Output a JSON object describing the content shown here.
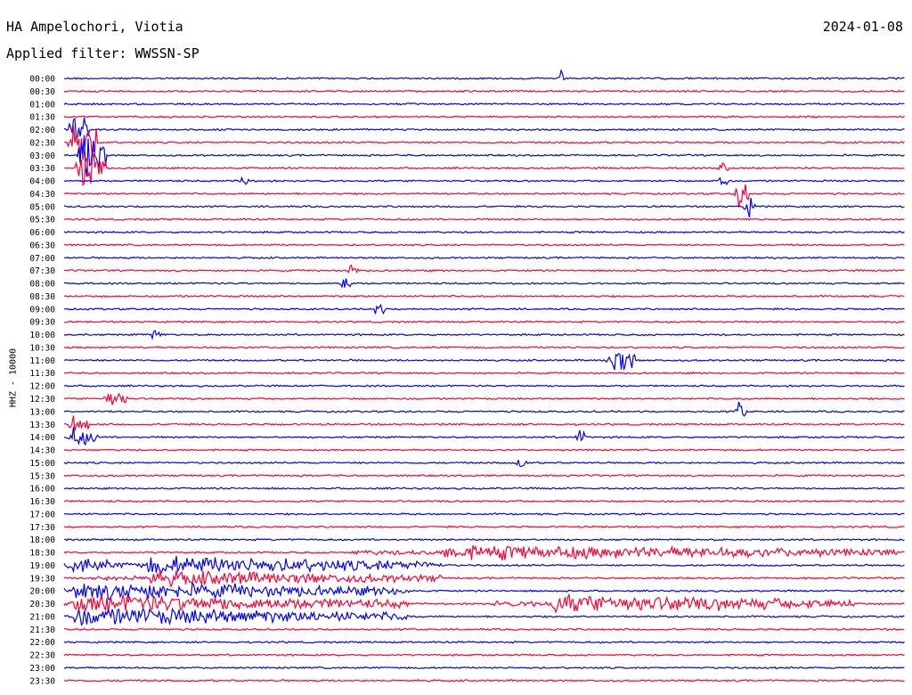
{
  "header": {
    "station": "HA Ampelochori, Viotia",
    "date": "2024-01-08",
    "filter": "Applied filter: WWSSN-SP"
  },
  "chart_data": {
    "type": "line",
    "title": "HA Ampelochori, Viotia",
    "ylabel": "HHZ - 10000",
    "colors": [
      "#0000ff",
      "#ff0033"
    ],
    "row_labels": [
      "00:00",
      "00:30",
      "01:00",
      "01:30",
      "02:00",
      "02:30",
      "03:00",
      "03:30",
      "04:00",
      "04:30",
      "05:00",
      "05:30",
      "06:00",
      "06:30",
      "07:00",
      "07:30",
      "08:00",
      "08:30",
      "09:00",
      "09:30",
      "10:00",
      "10:30",
      "11:00",
      "11:30",
      "12:00",
      "12:30",
      "13:00",
      "13:30",
      "14:00",
      "14:30",
      "15:00",
      "15:30",
      "16:00",
      "16:30",
      "17:00",
      "17:30",
      "18:00",
      "18:30",
      "19:00",
      "19:30",
      "20:00",
      "20:30",
      "21:00",
      "21:30",
      "22:00",
      "22:30",
      "23:00",
      "23:30"
    ],
    "events": [
      {
        "row": 0,
        "pos": 0.59,
        "amp": 12,
        "width": 0.006
      },
      {
        "row": 4,
        "pos": 0.01,
        "amp": 30,
        "width": 0.02
      },
      {
        "row": 5,
        "pos": 0.01,
        "amp": 40,
        "width": 0.03
      },
      {
        "row": 6,
        "pos": 0.02,
        "amp": 45,
        "width": 0.03
      },
      {
        "row": 7,
        "pos": 0.02,
        "amp": 35,
        "width": 0.03
      },
      {
        "row": 7,
        "pos": 0.78,
        "amp": 12,
        "width": 0.01
      },
      {
        "row": 8,
        "pos": 0.21,
        "amp": 12,
        "width": 0.01
      },
      {
        "row": 8,
        "pos": 0.78,
        "amp": 15,
        "width": 0.01
      },
      {
        "row": 9,
        "pos": 0.8,
        "amp": 25,
        "width": 0.015
      },
      {
        "row": 10,
        "pos": 0.81,
        "amp": 18,
        "width": 0.012
      },
      {
        "row": 15,
        "pos": 0.34,
        "amp": 10,
        "width": 0.01
      },
      {
        "row": 16,
        "pos": 0.33,
        "amp": 14,
        "width": 0.012
      },
      {
        "row": 18,
        "pos": 0.37,
        "amp": 12,
        "width": 0.012
      },
      {
        "row": 20,
        "pos": 0.1,
        "amp": 10,
        "width": 0.015
      },
      {
        "row": 22,
        "pos": 0.65,
        "amp": 22,
        "width": 0.03
      },
      {
        "row": 25,
        "pos": 0.05,
        "amp": 14,
        "width": 0.025
      },
      {
        "row": 26,
        "pos": 0.8,
        "amp": 15,
        "width": 0.012
      },
      {
        "row": 27,
        "pos": 0.01,
        "amp": 15,
        "width": 0.02
      },
      {
        "row": 28,
        "pos": 0.01,
        "amp": 14,
        "width": 0.03
      },
      {
        "row": 28,
        "pos": 0.61,
        "amp": 12,
        "width": 0.012
      },
      {
        "row": 30,
        "pos": 0.54,
        "amp": 10,
        "width": 0.012
      },
      {
        "row": 38,
        "pos": 0.01,
        "amp": 12,
        "width": 0.05
      },
      {
        "row": 38,
        "pos": 0.1,
        "amp": 12,
        "width": 0.35
      },
      {
        "row": 39,
        "pos": 0.1,
        "amp": 10,
        "width": 0.35
      },
      {
        "row": 40,
        "pos": 0.01,
        "amp": 12,
        "width": 0.4
      },
      {
        "row": 41,
        "pos": 0.01,
        "amp": 12,
        "width": 0.4
      },
      {
        "row": 42,
        "pos": 0.01,
        "amp": 12,
        "width": 0.4
      },
      {
        "row": 37,
        "pos": 0.45,
        "amp": 10,
        "width": 0.54
      },
      {
        "row": 41,
        "pos": 0.58,
        "amp": 12,
        "width": 0.36
      }
    ]
  }
}
